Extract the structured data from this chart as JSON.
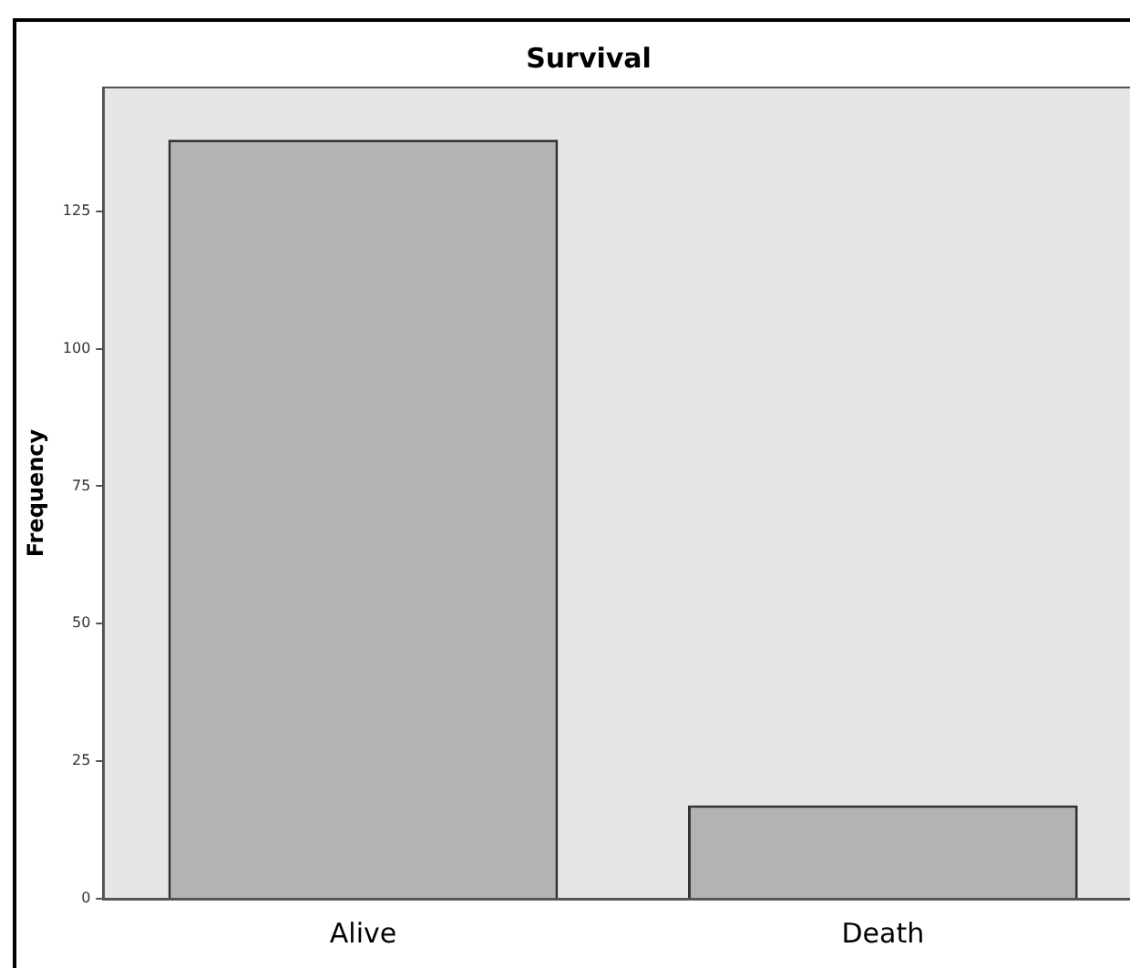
{
  "chart_data": {
    "type": "bar",
    "title": "Survival",
    "ylabel": "Frequency",
    "categories": [
      "Alive",
      "Death"
    ],
    "values": [
      138,
      17
    ],
    "color": "#b3b3b5",
    "ylim": [
      0,
      147.5
    ],
    "yticks": [
      0,
      25,
      50,
      75,
      100,
      125
    ],
    "grid": false,
    "legend": false
  }
}
